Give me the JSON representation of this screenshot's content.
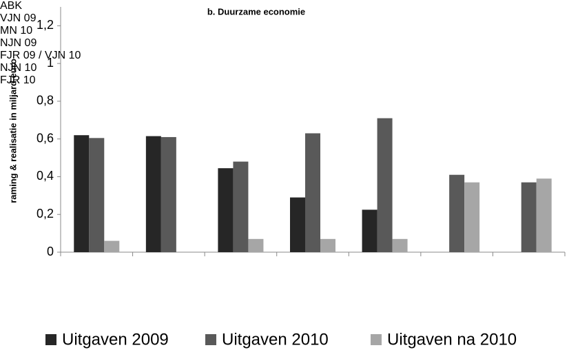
{
  "chart_data": {
    "type": "bar",
    "title": "b. Duurzame economie",
    "y_label": "raming & realisatie in miljard euro",
    "categories": [
      "ABK",
      "VJN 09",
      "MN 10",
      "NJN 09",
      "FJR 09 / VJN 10",
      "NJN 10",
      "FJR 10"
    ],
    "series": [
      {
        "name": "Uitgaven 2009",
        "color": "#262626",
        "values": [
          0.62,
          0.615,
          0.445,
          0.29,
          0.225,
          null,
          null
        ]
      },
      {
        "name": "Uitgaven 2010",
        "color": "#595959",
        "values": [
          0.605,
          0.61,
          0.48,
          0.63,
          0.71,
          0.41,
          0.37
        ]
      },
      {
        "name": "Uitgaven na 2010",
        "color": "#a6a6a6",
        "values": [
          0.06,
          null,
          0.07,
          0.07,
          0.07,
          0.37,
          0.39
        ]
      }
    ],
    "ylim": [
      0,
      1.3
    ],
    "yticks": [
      0,
      {
        "value": 0.2,
        "label": "0,2"
      },
      {
        "value": 0.4,
        "label": "0,4"
      },
      {
        "value": 0.6,
        "label": "0,6"
      },
      {
        "value": 0.8,
        "label": "0,8"
      },
      1,
      {
        "value": 1.2,
        "label": "1,2"
      }
    ],
    "legend": "bottom"
  }
}
